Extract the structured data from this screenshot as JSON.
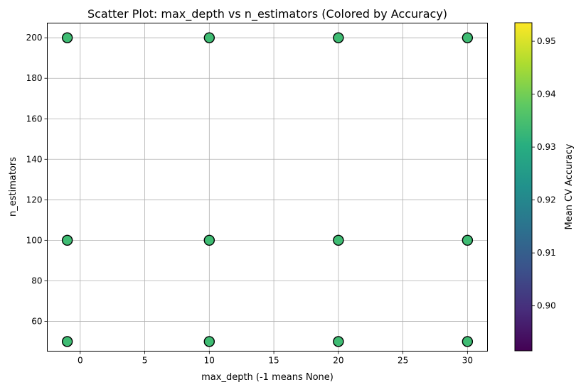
{
  "chart_data": {
    "type": "scatter",
    "title": "Scatter Plot: max_depth vs n_estimators (Colored by Accuracy)",
    "xlabel": "max_depth (-1 means None)",
    "ylabel": "n_estimators",
    "xlim": [
      -2.55,
      31.55
    ],
    "ylim": [
      45.25,
      207.25
    ],
    "xticks": [
      0,
      5,
      10,
      15,
      20,
      25,
      30
    ],
    "yticks": [
      60,
      80,
      100,
      120,
      140,
      160,
      180,
      200
    ],
    "grid": true,
    "colorbar": {
      "label": "Mean CV Accuracy",
      "range": [
        0.8915,
        0.9535
      ],
      "ticks": [
        0.9,
        0.91,
        0.92,
        0.93,
        0.94,
        0.95
      ],
      "tick_labels": [
        "0.90",
        "0.91",
        "0.92",
        "0.93",
        "0.94",
        "0.95"
      ],
      "colormap": "viridis"
    },
    "points": [
      {
        "x": -1,
        "y": 200,
        "accuracy": 0.935
      },
      {
        "x": -1,
        "y": 100,
        "accuracy": 0.935
      },
      {
        "x": -1,
        "y": 50,
        "accuracy": 0.935
      },
      {
        "x": 10,
        "y": 200,
        "accuracy": 0.935
      },
      {
        "x": 10,
        "y": 100,
        "accuracy": 0.935
      },
      {
        "x": 10,
        "y": 50,
        "accuracy": 0.935
      },
      {
        "x": 20,
        "y": 200,
        "accuracy": 0.935
      },
      {
        "x": 20,
        "y": 100,
        "accuracy": 0.935
      },
      {
        "x": 20,
        "y": 50,
        "accuracy": 0.935
      },
      {
        "x": 30,
        "y": 200,
        "accuracy": 0.935
      },
      {
        "x": 30,
        "y": 100,
        "accuracy": 0.935
      },
      {
        "x": 30,
        "y": 50,
        "accuracy": 0.935
      }
    ],
    "marker_color": "#3fbc73",
    "marker_edge_color": "#000000"
  }
}
